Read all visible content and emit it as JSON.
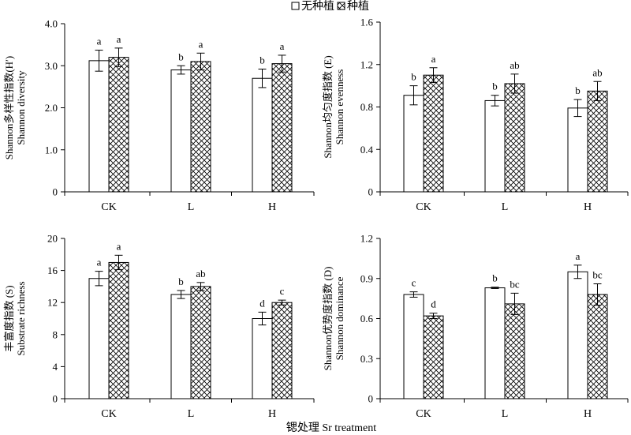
{
  "legend": {
    "items": [
      {
        "label": "无种植",
        "pattern": "open"
      },
      {
        "label": "种植",
        "pattern": "crosshatch"
      }
    ]
  },
  "x_axis_label": "锶处理 Sr treatment",
  "chart_data": [
    {
      "type": "bar",
      "ylabel_line1": "Shannon多样性指数(H′)",
      "ylabel_line2": "Shannon diversity",
      "categories": [
        "CK",
        "L",
        "H"
      ],
      "ylim": [
        0,
        4.0
      ],
      "yticks": [
        "0",
        "1.0",
        "2.0",
        "3.0",
        "4.0"
      ],
      "ytick_values": [
        0,
        1.0,
        2.0,
        3.0,
        4.0
      ],
      "series": [
        {
          "name": "无种植",
          "values": [
            3.12,
            2.9,
            2.7
          ],
          "errors": [
            0.25,
            0.1,
            0.22
          ],
          "labels": [
            "a",
            "b",
            "b"
          ]
        },
        {
          "name": "种植",
          "values": [
            3.2,
            3.1,
            3.05
          ],
          "errors": [
            0.22,
            0.2,
            0.2
          ],
          "labels": [
            "a",
            "a",
            "a"
          ]
        }
      ]
    },
    {
      "type": "bar",
      "ylabel_line1": "Shannon均匀度指数 (E)",
      "ylabel_line2": "Shannon evenness",
      "categories": [
        "CK",
        "L",
        "H"
      ],
      "ylim": [
        0,
        1.6
      ],
      "yticks": [
        "0",
        "0.4",
        "0.8",
        "1.2",
        "1.6"
      ],
      "ytick_values": [
        0,
        0.4,
        0.8,
        1.2,
        1.6
      ],
      "series": [
        {
          "name": "无种植",
          "values": [
            0.91,
            0.86,
            0.79
          ],
          "errors": [
            0.09,
            0.05,
            0.08
          ],
          "labels": [
            "b",
            "b",
            "b"
          ]
        },
        {
          "name": "种植",
          "values": [
            1.1,
            1.02,
            0.95
          ],
          "errors": [
            0.07,
            0.09,
            0.09
          ],
          "labels": [
            "a",
            "ab",
            "ab"
          ]
        }
      ]
    },
    {
      "type": "bar",
      "ylabel_line1": "丰富度指数 (S)",
      "ylabel_line2": "Substrate richness",
      "categories": [
        "CK",
        "L",
        "H"
      ],
      "ylim": [
        0,
        20
      ],
      "yticks": [
        "0",
        "4",
        "8",
        "12",
        "16",
        "20"
      ],
      "ytick_values": [
        0,
        4,
        8,
        12,
        16,
        20
      ],
      "series": [
        {
          "name": "无种植",
          "values": [
            15,
            13,
            10
          ],
          "errors": [
            0.9,
            0.5,
            0.8
          ],
          "labels": [
            "a",
            "b",
            "d"
          ]
        },
        {
          "name": "种植",
          "values": [
            17,
            14,
            12
          ],
          "errors": [
            0.9,
            0.5,
            0.3
          ],
          "labels": [
            "a",
            "ab",
            "c"
          ]
        }
      ]
    },
    {
      "type": "bar",
      "ylabel_line1": "Shannon优势度指数 (D)",
      "ylabel_line2": "Shannon dominance",
      "categories": [
        "CK",
        "L",
        "H"
      ],
      "ylim": [
        0,
        1.2
      ],
      "yticks": [
        "0",
        "0.3",
        "0.6",
        "0.9",
        "1.2"
      ],
      "ytick_values": [
        0,
        0.3,
        0.6,
        0.9,
        1.2
      ],
      "series": [
        {
          "name": "无种植",
          "values": [
            0.78,
            0.83,
            0.95
          ],
          "errors": [
            0.02,
            0.005,
            0.05
          ],
          "labels": [
            "c",
            "b",
            "a"
          ]
        },
        {
          "name": "种植",
          "values": [
            0.62,
            0.71,
            0.78
          ],
          "errors": [
            0.02,
            0.08,
            0.08
          ],
          "labels": [
            "d",
            "bc",
            "bc"
          ]
        }
      ]
    }
  ]
}
